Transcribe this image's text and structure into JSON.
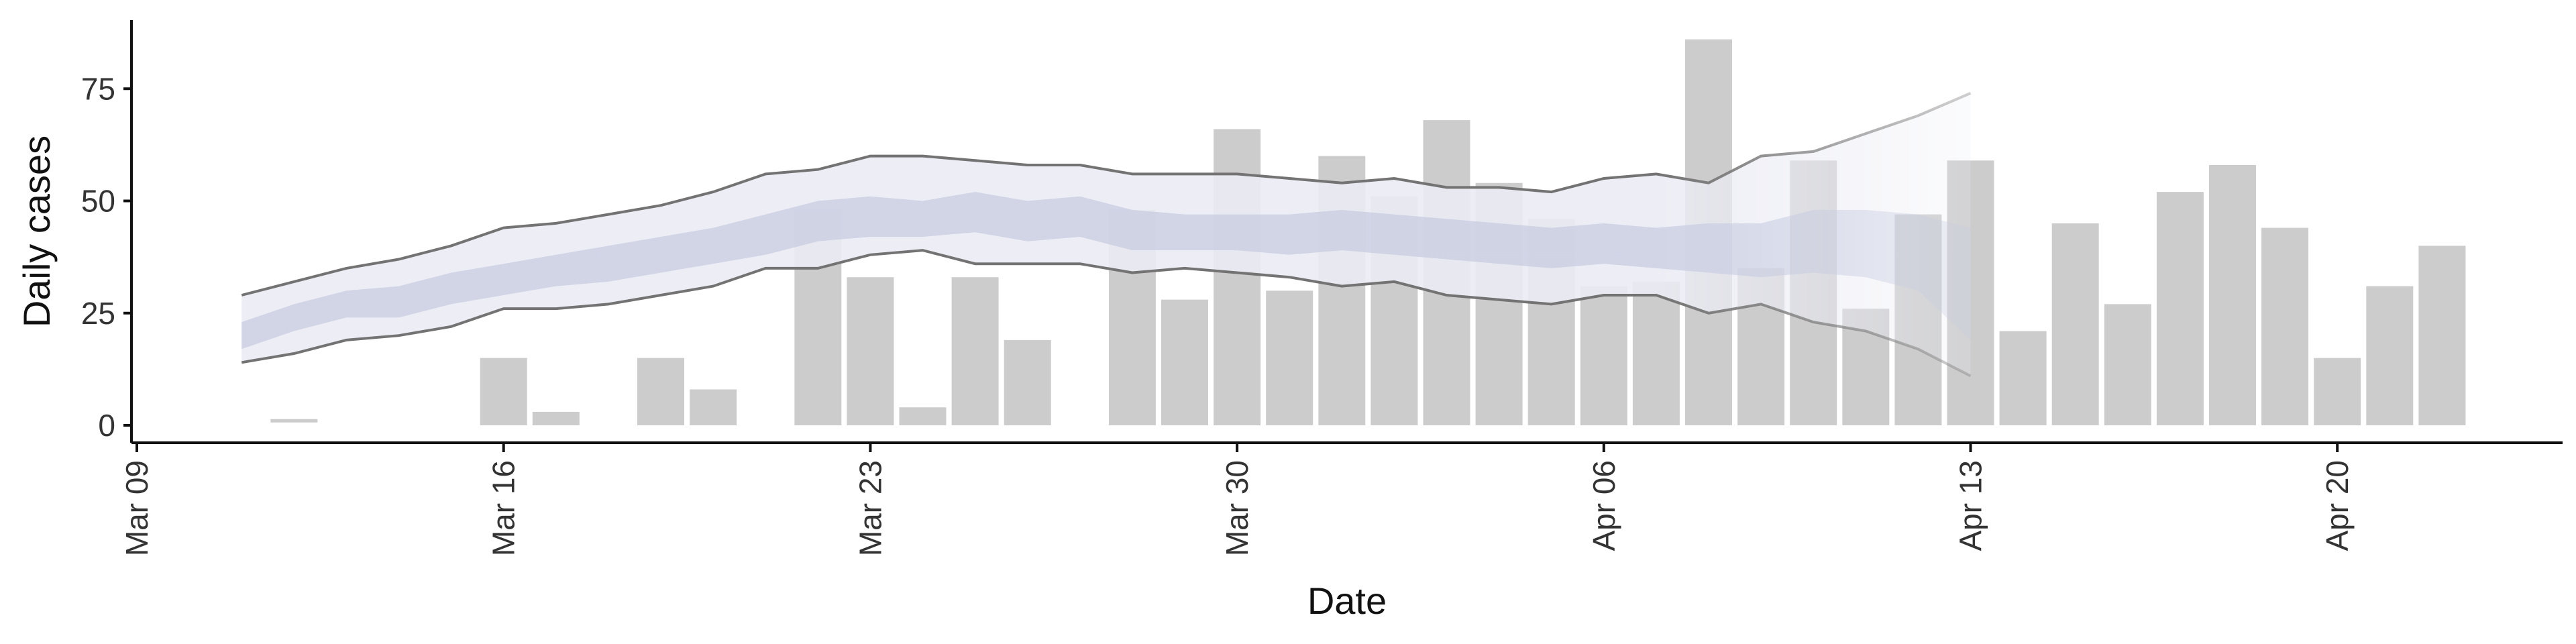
{
  "chart_data": {
    "type": "bar",
    "title": "",
    "xlabel": "Date",
    "ylabel": "Daily cases",
    "x_range": [
      "2020-03-09",
      "2020-04-26"
    ],
    "ylim": [
      -3,
      90
    ],
    "x_ticks": [
      {
        "date": "2020-03-09",
        "label": "Mar 09"
      },
      {
        "date": "2020-03-16",
        "label": "Mar 16"
      },
      {
        "date": "2020-03-23",
        "label": "Mar 23"
      },
      {
        "date": "2020-03-30",
        "label": "Mar 30"
      },
      {
        "date": "2020-04-06",
        "label": "Apr 06"
      },
      {
        "date": "2020-04-13",
        "label": "Apr 13"
      },
      {
        "date": "2020-04-20",
        "label": "Apr 20"
      }
    ],
    "y_ticks": [
      {
        "value": 0,
        "label": "0"
      },
      {
        "value": 25,
        "label": "25"
      },
      {
        "value": 50,
        "label": "50"
      },
      {
        "value": 75,
        "label": "75"
      }
    ],
    "grid": false,
    "legend": "none",
    "colors": {
      "bars": "#cccccc",
      "band_outer": "#ebecf4",
      "band_inner": "#c6cbe0",
      "interval_lines": "#737373"
    },
    "bars": [
      {
        "date": "2020-03-12",
        "value": 1
      },
      {
        "date": "2020-03-16",
        "value": 15
      },
      {
        "date": "2020-03-17",
        "value": 3
      },
      {
        "date": "2020-03-19",
        "value": 15
      },
      {
        "date": "2020-03-20",
        "value": 8
      },
      {
        "date": "2020-03-22",
        "value": 48
      },
      {
        "date": "2020-03-23",
        "value": 33
      },
      {
        "date": "2020-03-24",
        "value": 4
      },
      {
        "date": "2020-03-25",
        "value": 33
      },
      {
        "date": "2020-03-26",
        "value": 19
      },
      {
        "date": "2020-03-28",
        "value": 48
      },
      {
        "date": "2020-03-29",
        "value": 28
      },
      {
        "date": "2020-03-30",
        "value": 66
      },
      {
        "date": "2020-03-31",
        "value": 30
      },
      {
        "date": "2020-04-01",
        "value": 60
      },
      {
        "date": "2020-04-02",
        "value": 51
      },
      {
        "date": "2020-04-03",
        "value": 68
      },
      {
        "date": "2020-04-04",
        "value": 54
      },
      {
        "date": "2020-04-05",
        "value": 46
      },
      {
        "date": "2020-04-06",
        "value": 31
      },
      {
        "date": "2020-04-07",
        "value": 32
      },
      {
        "date": "2020-04-08",
        "value": 86
      },
      {
        "date": "2020-04-09",
        "value": 35
      },
      {
        "date": "2020-04-10",
        "value": 59
      },
      {
        "date": "2020-04-11",
        "value": 26
      },
      {
        "date": "2020-04-12",
        "value": 47
      },
      {
        "date": "2020-04-13",
        "value": 59
      },
      {
        "date": "2020-04-14",
        "value": 21
      },
      {
        "date": "2020-04-15",
        "value": 45
      },
      {
        "date": "2020-04-16",
        "value": 27
      },
      {
        "date": "2020-04-17",
        "value": 52
      },
      {
        "date": "2020-04-18",
        "value": 58
      },
      {
        "date": "2020-04-19",
        "value": 44
      },
      {
        "date": "2020-04-20",
        "value": 15
      },
      {
        "date": "2020-04-21",
        "value": 31
      },
      {
        "date": "2020-04-22",
        "value": 40
      }
    ],
    "bands": [
      {
        "date": "2020-03-11",
        "lo95": 14,
        "lo50": 17,
        "hi50": 23,
        "hi95": 29
      },
      {
        "date": "2020-03-12",
        "lo95": 16,
        "lo50": 21,
        "hi50": 27,
        "hi95": 32
      },
      {
        "date": "2020-03-13",
        "lo95": 19,
        "lo50": 24,
        "hi50": 30,
        "hi95": 35
      },
      {
        "date": "2020-03-14",
        "lo95": 20,
        "lo50": 24,
        "hi50": 31,
        "hi95": 37
      },
      {
        "date": "2020-03-15",
        "lo95": 22,
        "lo50": 27,
        "hi50": 34,
        "hi95": 40
      },
      {
        "date": "2020-03-16",
        "lo95": 26,
        "lo50": 29,
        "hi50": 36,
        "hi95": 44
      },
      {
        "date": "2020-03-17",
        "lo95": 26,
        "lo50": 31,
        "hi50": 38,
        "hi95": 45
      },
      {
        "date": "2020-03-18",
        "lo95": 27,
        "lo50": 32,
        "hi50": 40,
        "hi95": 47
      },
      {
        "date": "2020-03-19",
        "lo95": 29,
        "lo50": 34,
        "hi50": 42,
        "hi95": 49
      },
      {
        "date": "2020-03-20",
        "lo95": 31,
        "lo50": 36,
        "hi50": 44,
        "hi95": 52
      },
      {
        "date": "2020-03-21",
        "lo95": 35,
        "lo50": 38,
        "hi50": 47,
        "hi95": 56
      },
      {
        "date": "2020-03-22",
        "lo95": 35,
        "lo50": 41,
        "hi50": 50,
        "hi95": 57
      },
      {
        "date": "2020-03-23",
        "lo95": 38,
        "lo50": 42,
        "hi50": 51,
        "hi95": 60
      },
      {
        "date": "2020-03-24",
        "lo95": 39,
        "lo50": 42,
        "hi50": 50,
        "hi95": 60
      },
      {
        "date": "2020-03-25",
        "lo95": 36,
        "lo50": 43,
        "hi50": 52,
        "hi95": 59
      },
      {
        "date": "2020-03-26",
        "lo95": 36,
        "lo50": 41,
        "hi50": 50,
        "hi95": 58
      },
      {
        "date": "2020-03-27",
        "lo95": 36,
        "lo50": 42,
        "hi50": 51,
        "hi95": 58
      },
      {
        "date": "2020-03-28",
        "lo95": 34,
        "lo50": 39,
        "hi50": 48,
        "hi95": 56
      },
      {
        "date": "2020-03-29",
        "lo95": 35,
        "lo50": 39,
        "hi50": 47,
        "hi95": 56
      },
      {
        "date": "2020-03-30",
        "lo95": 34,
        "lo50": 39,
        "hi50": 47,
        "hi95": 56
      },
      {
        "date": "2020-03-31",
        "lo95": 33,
        "lo50": 38,
        "hi50": 47,
        "hi95": 55
      },
      {
        "date": "2020-04-01",
        "lo95": 31,
        "lo50": 39,
        "hi50": 48,
        "hi95": 54
      },
      {
        "date": "2020-04-02",
        "lo95": 32,
        "lo50": 38,
        "hi50": 47,
        "hi95": 55
      },
      {
        "date": "2020-04-03",
        "lo95": 29,
        "lo50": 37,
        "hi50": 46,
        "hi95": 53
      },
      {
        "date": "2020-04-04",
        "lo95": 28,
        "lo50": 36,
        "hi50": 45,
        "hi95": 53
      },
      {
        "date": "2020-04-05",
        "lo95": 27,
        "lo50": 35,
        "hi50": 44,
        "hi95": 52
      },
      {
        "date": "2020-04-06",
        "lo95": 29,
        "lo50": 36,
        "hi50": 45,
        "hi95": 55
      },
      {
        "date": "2020-04-07",
        "lo95": 29,
        "lo50": 35,
        "hi50": 44,
        "hi95": 56
      },
      {
        "date": "2020-04-08",
        "lo95": 25,
        "lo50": 34,
        "hi50": 45,
        "hi95": 54
      },
      {
        "date": "2020-04-09",
        "lo95": 27,
        "lo50": 33,
        "hi50": 45,
        "hi95": 60
      },
      {
        "date": "2020-04-10",
        "lo95": 23,
        "lo50": 34,
        "hi50": 48,
        "hi95": 61
      },
      {
        "date": "2020-04-11",
        "lo95": 21,
        "lo50": 33,
        "hi50": 48,
        "hi95": 65
      },
      {
        "date": "2020-04-12",
        "lo95": 17,
        "lo50": 30,
        "hi50": 47,
        "hi95": 69
      },
      {
        "date": "2020-04-13",
        "lo95": 11,
        "lo50": 19,
        "hi50": 44,
        "hi95": 74
      }
    ]
  }
}
